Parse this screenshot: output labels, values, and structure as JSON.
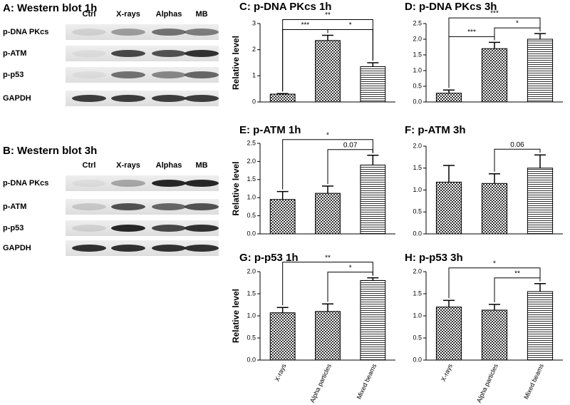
{
  "western_blots": [
    {
      "title": "A: Western blot 1h",
      "lanes": [
        "Ctrl",
        "X-rays",
        "Alphas",
        "MB"
      ],
      "rows": [
        "p-DNA PKcs",
        "p-ATM",
        "p-p53",
        "GAPDH"
      ]
    },
    {
      "title": "B: Western blot 3h",
      "lanes": [
        "Ctrl",
        "X-rays",
        "Alphas",
        "MB"
      ],
      "rows": [
        "p-DNA PKcs",
        "p-ATM",
        "p-p53",
        "GAPDH"
      ]
    }
  ],
  "chart_data": [
    {
      "type": "bar",
      "title": "C: p-DNA PKcs 1h",
      "y_label": "Relative level",
      "categories": [
        null,
        null,
        null
      ],
      "values": [
        0.3,
        2.35,
        1.35
      ],
      "errors": [
        0.02,
        0.2,
        0.15
      ],
      "ylim": [
        0,
        3
      ],
      "yticks": [
        0,
        1,
        2,
        3
      ],
      "annotations": [
        "**",
        "***",
        "*"
      ]
    },
    {
      "type": "bar",
      "title": "D: p-DNA PKcs 3h",
      "categories": [
        null,
        null,
        null
      ],
      "values": [
        0.28,
        1.7,
        2.0
      ],
      "errors": [
        0.1,
        0.2,
        0.18
      ],
      "ylim": [
        0,
        2.5
      ],
      "yticks": [
        {
          "value": 0,
          "label": "0.0"
        },
        0.5,
        {
          "value": 1,
          "label": "1.0"
        },
        1.5,
        {
          "value": 2,
          "label": "2.0"
        },
        2.5
      ],
      "annotations": [
        "***",
        "***",
        "*"
      ]
    },
    {
      "type": "bar",
      "title": "E: p-ATM 1h",
      "y_label": "Relative level",
      "categories": [
        null,
        null,
        null
      ],
      "values": [
        0.95,
        1.12,
        1.9
      ],
      "errors": [
        0.22,
        0.2,
        0.27
      ],
      "ylim": [
        0,
        2.5
      ],
      "yticks": [
        {
          "value": 0,
          "label": "0.0"
        },
        0.5,
        {
          "value": 1,
          "label": "1.0"
        },
        1.5,
        {
          "value": 2,
          "label": "2.0"
        },
        2.5
      ],
      "annotations": [
        "*",
        "0.07"
      ]
    },
    {
      "type": "bar",
      "title": "F: p-ATM 3h",
      "categories": [
        null,
        null,
        null
      ],
      "values": [
        1.18,
        1.15,
        1.5
      ],
      "errors": [
        0.38,
        0.22,
        0.3
      ],
      "ylim": [
        0,
        2
      ],
      "yticks": [
        {
          "value": 0,
          "label": "0.0"
        },
        0.5,
        {
          "value": 1,
          "label": "1.0"
        },
        1.5,
        {
          "value": 2,
          "label": "2.0"
        }
      ],
      "annotations": [
        "0.06"
      ]
    },
    {
      "type": "bar",
      "title": "G: p-p53 1h",
      "y_label": "Relative level",
      "categories": [
        "X-rays",
        "Alpha particles",
        "Mixed beams"
      ],
      "values": [
        1.07,
        1.1,
        1.8
      ],
      "errors": [
        0.12,
        0.17,
        0.06
      ],
      "ylim": [
        0,
        2
      ],
      "yticks": [
        {
          "value": 0,
          "label": "0.0"
        },
        0.5,
        {
          "value": 1,
          "label": "1.0"
        },
        1.5,
        {
          "value": 2,
          "label": "2.0"
        }
      ],
      "annotations": [
        "**",
        "*"
      ]
    },
    {
      "type": "bar",
      "title": "H: p-p53 3h",
      "categories": [
        "X-rays",
        "Alpha particles",
        "Mixed beams"
      ],
      "values": [
        1.2,
        1.13,
        1.55
      ],
      "errors": [
        0.15,
        0.13,
        0.18
      ],
      "ylim": [
        0,
        2
      ],
      "yticks": [
        {
          "value": 0,
          "label": "0.0"
        },
        0.5,
        {
          "value": 1,
          "label": "1.0"
        },
        1.5,
        {
          "value": 2,
          "label": "2.0"
        }
      ],
      "annotations": [
        "*",
        "**"
      ]
    }
  ]
}
